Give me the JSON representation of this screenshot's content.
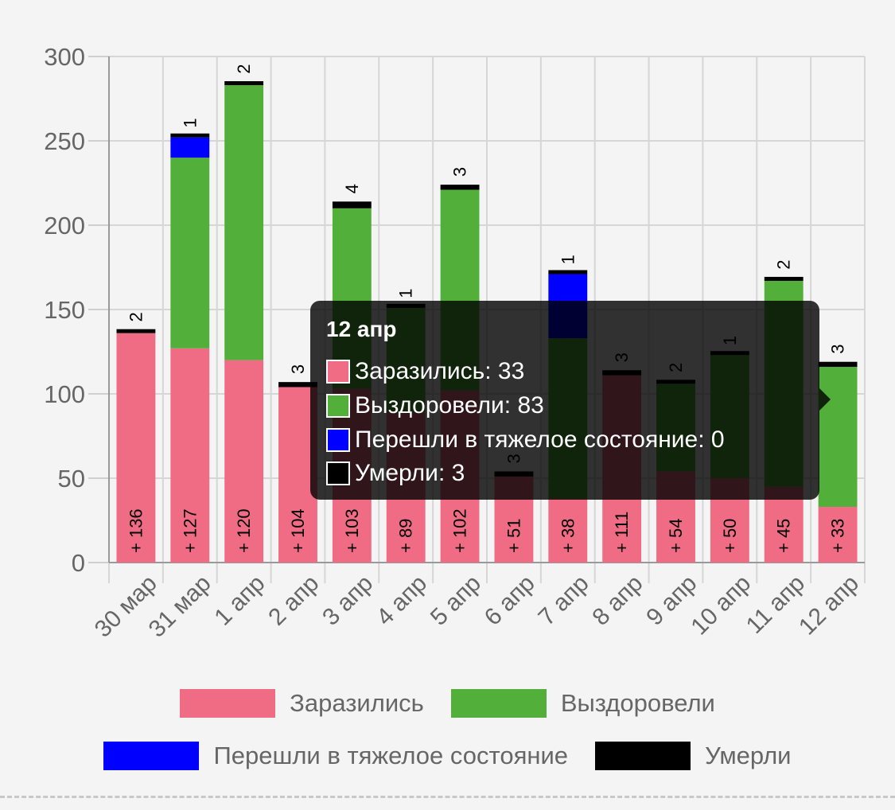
{
  "chart_data": {
    "type": "bar",
    "stacked": true,
    "categories": [
      "30 мар",
      "31 мар",
      "1 апр",
      "2 апр",
      "3 апр",
      "4 апр",
      "5 апр",
      "6 апр",
      "7 апр",
      "8 апр",
      "9 апр",
      "10 апр",
      "11 апр",
      "12 апр"
    ],
    "series": [
      {
        "name": "Заразились",
        "color": "#ef6c84",
        "values": [
          136,
          127,
          120,
          104,
          103,
          89,
          102,
          51,
          38,
          111,
          54,
          50,
          45,
          33
        ]
      },
      {
        "name": "Выздоровели",
        "color": "#52b03a",
        "values": [
          0,
          113,
          163,
          0,
          107,
          62,
          119,
          0,
          95,
          0,
          52,
          73,
          122,
          83
        ]
      },
      {
        "name": "Перешли в тяжелое состояние",
        "color": "#0000ff",
        "values": [
          0,
          12,
          0,
          0,
          0,
          0,
          0,
          0,
          38,
          0,
          0,
          0,
          0,
          0
        ]
      },
      {
        "name": "Умерли",
        "color": "#000000",
        "values": [
          2,
          1,
          2,
          3,
          4,
          1,
          3,
          3,
          1,
          3,
          2,
          1,
          2,
          3
        ]
      }
    ],
    "bar_labels": [
      "+ 136",
      "+ 127",
      "+ 120",
      "+ 104",
      "+ 103",
      "+ 89",
      "+ 102",
      "+ 51",
      "+ 38",
      "+ 111",
      "+ 54",
      "+ 50",
      "+ 45",
      "+ 33"
    ],
    "y_ticks": [
      "0",
      "50",
      "100",
      "150",
      "200",
      "250",
      "300"
    ],
    "ylim": [
      0,
      300
    ],
    "grid": true,
    "legend_position": "bottom"
  },
  "legend": {
    "row1": [
      {
        "label": "Заразились",
        "color": "#ef6c84"
      },
      {
        "label": "Выздоровели",
        "color": "#52b03a"
      }
    ],
    "row2": [
      {
        "label": "Перешли в тяжелое состояние",
        "color": "#0000ff"
      },
      {
        "label": "Умерли",
        "color": "#000000"
      }
    ]
  },
  "tooltip": {
    "title": "12 апр",
    "rows": [
      {
        "text": "Заразились: 33",
        "color": "#ef6c84"
      },
      {
        "text": "Выздоровели: 83",
        "color": "#52b03a"
      },
      {
        "text": "Перешли в тяжелое состояние: 0",
        "color": "#0000ff"
      },
      {
        "text": "Умерли: 3",
        "color": "#000000"
      }
    ]
  }
}
